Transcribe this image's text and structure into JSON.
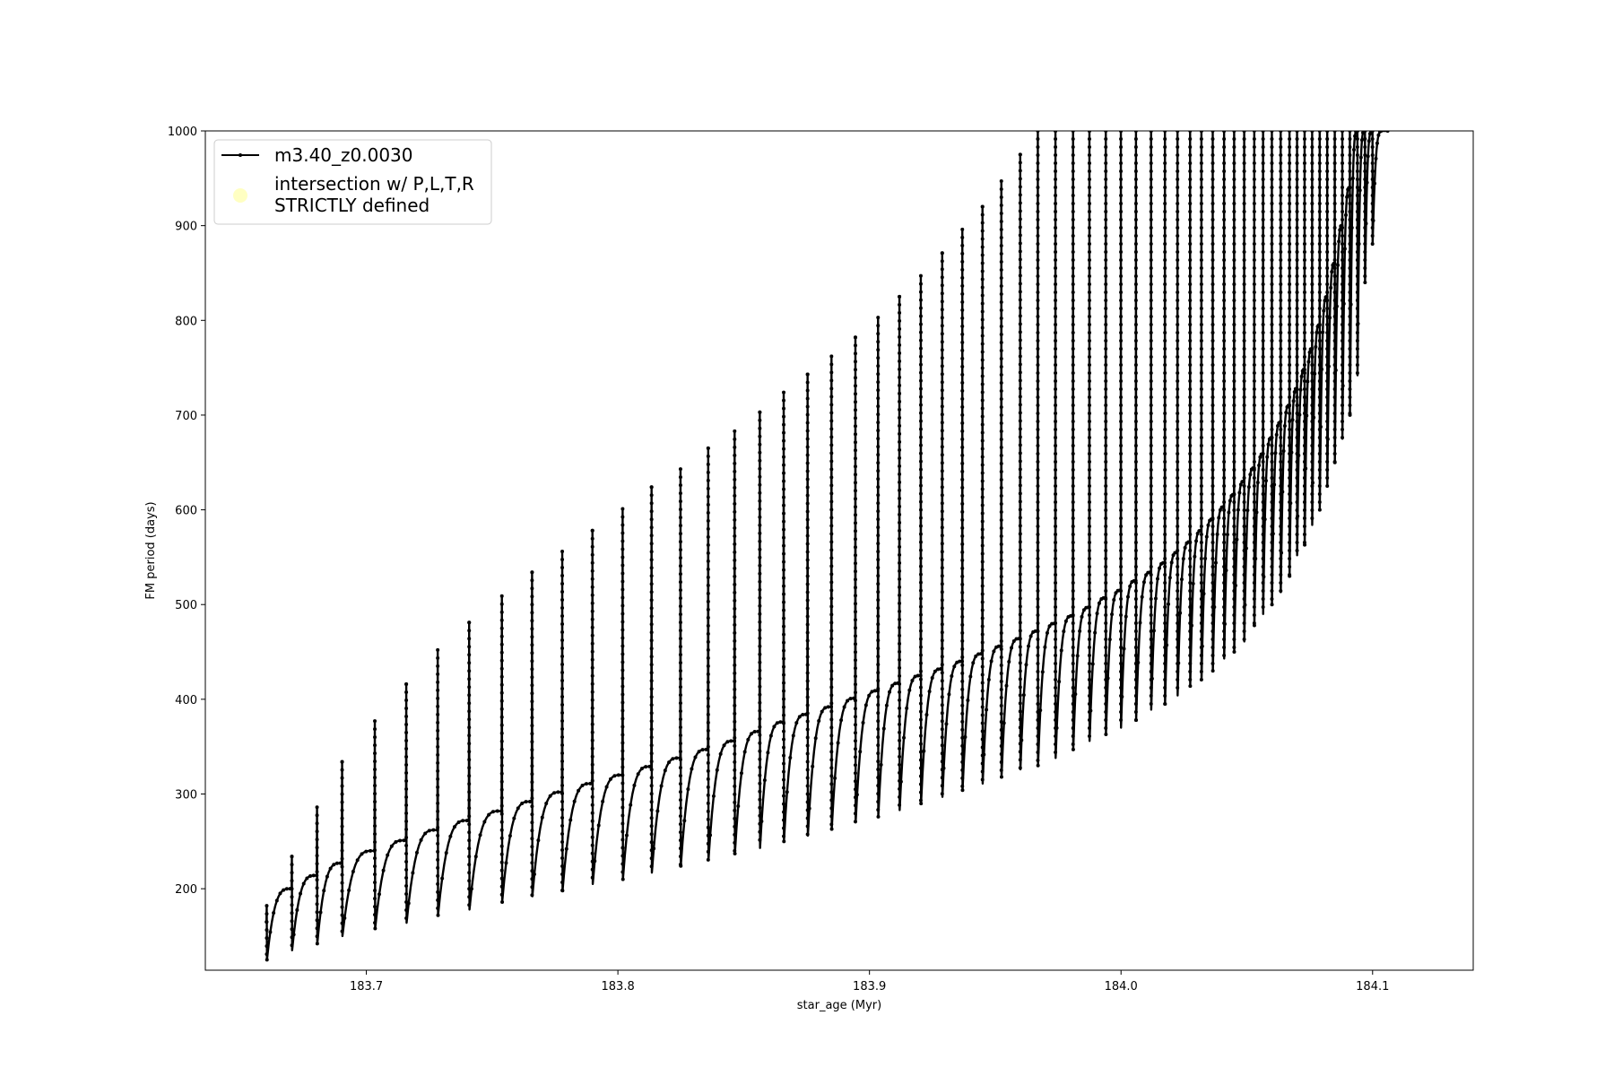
{
  "chart_data": {
    "type": "line",
    "title": "",
    "xlabel": "star_age (Myr)",
    "ylabel": "FM period (days)",
    "xlim": [
      183.636,
      184.14
    ],
    "ylim": [
      114,
      1000
    ],
    "xticks": [
      183.7,
      183.8,
      183.9,
      184.0,
      184.1
    ],
    "xtick_labels": [
      "183.7",
      "183.8",
      "183.9",
      "184.0",
      "184.1"
    ],
    "yticks": [
      200,
      300,
      400,
      500,
      600,
      700,
      800,
      900,
      1000
    ],
    "ytick_labels": [
      "200",
      "300",
      "400",
      "500",
      "600",
      "700",
      "800",
      "900",
      "1000"
    ],
    "grid": false,
    "legend_placement": "upper left",
    "series": [
      {
        "name": "m3.40_z0.0030",
        "color": "#000000",
        "marker": "dot",
        "description_pulses": {
          "pulse_ages": [
            183.6605,
            183.6705,
            183.6805,
            183.6905,
            183.7035,
            183.716,
            183.7285,
            183.741,
            183.754,
            183.766,
            183.778,
            183.79,
            183.802,
            183.8135,
            183.825,
            183.836,
            183.8465,
            183.8565,
            183.866,
            183.8755,
            183.885,
            183.8945,
            183.9035,
            183.912,
            183.9205,
            183.929,
            183.937,
            183.945,
            183.9525,
            183.96,
            183.967,
            183.974,
            183.981,
            183.9875,
            183.994,
            184.0,
            184.006,
            184.012,
            184.0175,
            184.0225,
            184.0275,
            184.032,
            184.0365,
            184.041,
            184.045,
            184.049,
            184.053,
            184.0565,
            184.06,
            184.0635,
            184.067,
            184.07,
            184.073,
            184.076,
            184.079,
            184.082,
            184.085,
            184.088,
            184.091,
            184.094,
            184.097,
            184.1
          ],
          "base_periods": [
            125,
            135,
            142,
            150,
            158,
            164,
            172,
            178,
            186,
            192,
            198,
            205,
            210,
            217,
            224,
            230,
            237,
            243,
            250,
            256,
            263,
            270,
            276,
            283,
            290,
            297,
            304,
            311,
            318,
            326,
            330,
            338,
            347,
            356,
            363,
            370,
            378,
            389,
            395,
            404,
            414,
            420,
            430,
            443,
            450,
            461,
            478,
            490,
            500,
            513,
            530,
            552,
            563,
            584,
            600,
            625,
            650,
            675,
            700,
            742,
            840,
            880
          ],
          "peak_periods": [
            182,
            234,
            286,
            334,
            377,
            416,
            452,
            481,
            509,
            534,
            556,
            578,
            601,
            624,
            643,
            665,
            683,
            703,
            724,
            743,
            762,
            782,
            803,
            825,
            847,
            871,
            896,
            920,
            947,
            975,
            1000,
            1000,
            1000,
            1000,
            1000,
            1000,
            1000,
            1000,
            1000,
            1000,
            1000,
            1000,
            1000,
            1000,
            1000,
            1000,
            1000,
            1000,
            1000,
            1000,
            1000,
            1000,
            1000,
            1000,
            1000,
            1000,
            1000,
            1000,
            1000,
            1000,
            1000,
            1000
          ],
          "plateau_periods": [
            200,
            214,
            227,
            240,
            251,
            262,
            272,
            282,
            292,
            302,
            311,
            320,
            329,
            338,
            347,
            356,
            366,
            376,
            384,
            392,
            401,
            409,
            417,
            425,
            432,
            440,
            448,
            456,
            464,
            472,
            480,
            488,
            497,
            507,
            515,
            525,
            534,
            544,
            555,
            566,
            578,
            590,
            603,
            616,
            630,
            644,
            659,
            676,
            692,
            710,
            728,
            748,
            770,
            795,
            825,
            860,
            900,
            940,
            1000,
            1000,
            1000,
            1000
          ]
        }
      },
      {
        "name": "intersection w/ P,L,T,R\nSTRICTLY defined",
        "color": "#ffffb3",
        "marker": "circle",
        "values": []
      }
    ]
  },
  "legend": {
    "line_label": "m3.40_z0.0030",
    "scatter_label_line1": "intersection w/ P,L,T,R",
    "scatter_label_line2": "STRICTLY defined"
  }
}
